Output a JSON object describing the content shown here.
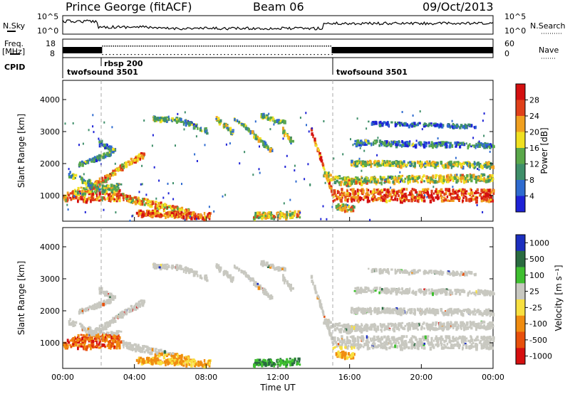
{
  "header": {
    "station": "Prince George (fitACF)",
    "beam": "Beam 06",
    "date": "09/Oct/2013"
  },
  "summary": {
    "nsky_label": "N.Sky",
    "nsearch_label": "N.Search",
    "freq_label": "Freq.",
    "freq_unit": "[MHz]",
    "nave_label": "Nave",
    "cpid_label": "CPID",
    "nsky_ticks": [
      "10^5",
      "10^0"
    ],
    "nsearch_ticks": [
      "10^5",
      "10^0"
    ],
    "freq_ticks": [
      "18",
      "8"
    ],
    "nave_ticks": [
      "60",
      "0"
    ],
    "cpid_segments": [
      {
        "label": "twofsound 3501",
        "start_h": 0,
        "end_h": 2
      },
      {
        "label": "rbsp 200",
        "start_h": 2,
        "end_h": 15
      },
      {
        "label": "twofsound 3501",
        "start_h": 15,
        "end_h": 24
      }
    ]
  },
  "chart_data": [
    {
      "type": "heatmap",
      "name": "power",
      "ylabel": "Slant Range [km]",
      "xlabel": "",
      "xlim": [
        0,
        24
      ],
      "ylim": [
        200,
        4600
      ],
      "yticks": [
        1000,
        2000,
        3000,
        4000
      ],
      "colorbar_label": "Power [dB]",
      "colorbar_ticks": [
        "4",
        "8",
        "12",
        "16",
        "20",
        "24",
        "28"
      ],
      "colors": [
        "#1e22d6",
        "#2f6bd0",
        "#3f8f6a",
        "#5aa84a",
        "#f0e020",
        "#f0a020",
        "#e0401a",
        "#d41010"
      ]
    },
    {
      "type": "heatmap",
      "name": "velocity",
      "ylabel": "Slant Range [km]",
      "xlabel": "Time UT",
      "xlim": [
        0,
        24
      ],
      "ylim": [
        200,
        4600
      ],
      "yticks": [
        1000,
        2000,
        3000,
        4000
      ],
      "xtick_labels": [
        "00:00",
        "04:00",
        "08:00",
        "12:00",
        "16:00",
        "20:00",
        "00:00"
      ],
      "colorbar_label": "Velocity [m s⁻¹]",
      "colorbar_ticks": [
        "1000",
        "500",
        "100",
        "25",
        "-25",
        "-100",
        "-500",
        "-1000"
      ],
      "colors": [
        "#1c2fbf",
        "#2a6b40",
        "#3fbf30",
        "#c8c8c0",
        "#f8e040",
        "#f08c10",
        "#e8500c",
        "#d60f0f"
      ],
      "ground_scatter_color": "#c8c8c0"
    }
  ]
}
